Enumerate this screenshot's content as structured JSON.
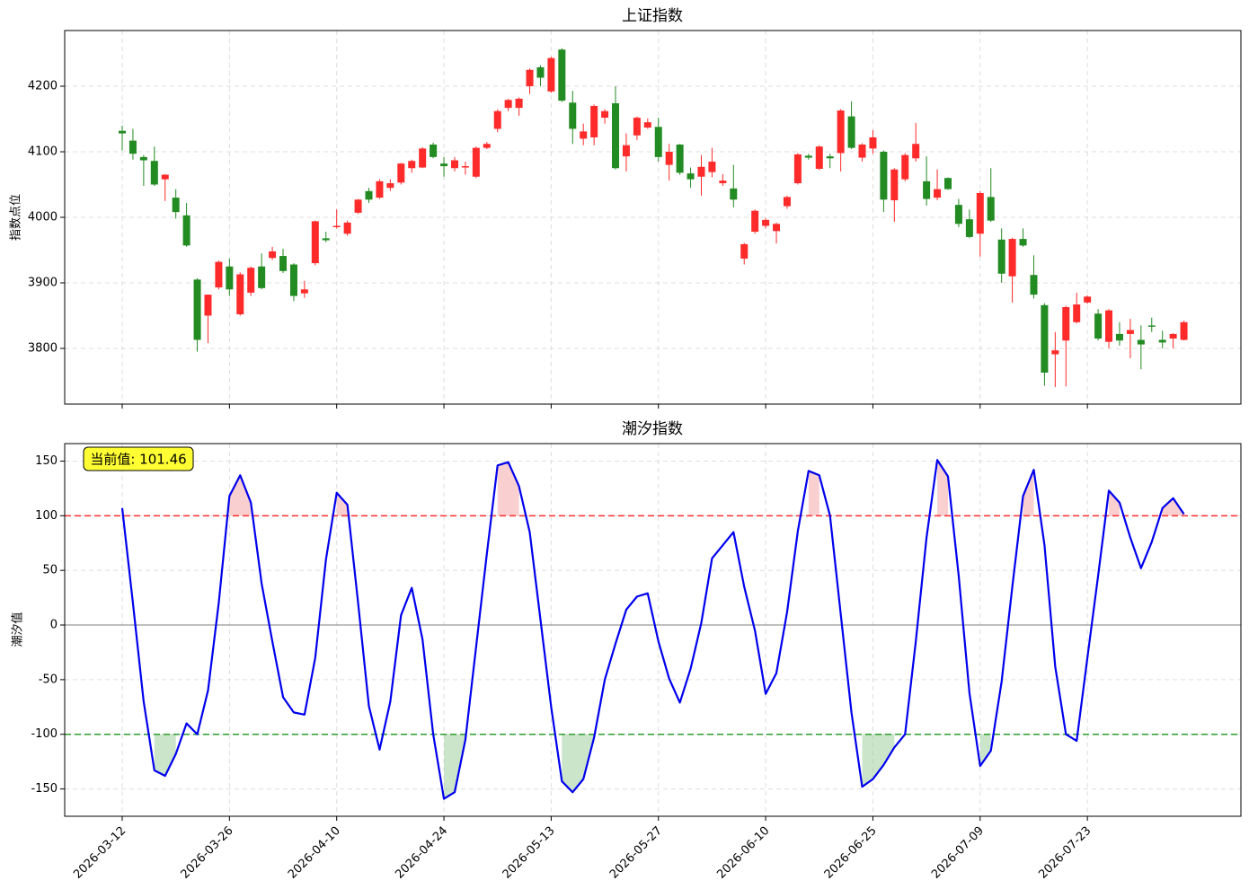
{
  "chart_data": [
    {
      "type": "candlestick",
      "title": "上证指数",
      "ylabel": "指数点位",
      "open": [
        4132,
        4117,
        4092,
        4086,
        4058,
        4030,
        4003,
        3905,
        3850,
        3893,
        3925,
        3852,
        3885,
        3925,
        3938,
        3941,
        3928,
        3884,
        3930,
        3968,
        3985,
        3975,
        4007,
        4040,
        4030,
        4045,
        4053,
        4075,
        4076,
        4111,
        4082,
        4075,
        4076,
        4062,
        4106,
        4135,
        4167,
        4167,
        4200,
        4229,
        4192,
        4256,
        4175,
        4120,
        4122,
        4152,
        4174,
        4093,
        4125,
        4137,
        4138,
        4080,
        4111,
        4067,
        4062,
        4069,
        4052,
        4044,
        3937,
        3978,
        3987,
        3979,
        4017,
        4052,
        4094,
        4074,
        4093,
        4098,
        4154,
        4091,
        4105,
        4100,
        4026,
        4058,
        4090,
        4055,
        4030,
        4060,
        4019,
        3997,
        3975,
        4031,
        3966,
        3910,
        3967,
        3912,
        3866,
        3791,
        3812,
        3840,
        3870,
        3853,
        3810,
        3822,
        3822,
        3813,
        3835,
        3813,
        3815,
        3813
      ],
      "high": [
        4140,
        4135,
        4095,
        4108,
        4066,
        4043,
        4022,
        3907,
        3882,
        3934,
        3937,
        3916,
        3925,
        3945,
        3955,
        3952,
        3930,
        3903,
        3995,
        3978,
        4012,
        3995,
        4028,
        4045,
        4058,
        4058,
        4083,
        4088,
        4107,
        4114,
        4092,
        4092,
        4085,
        4108,
        4115,
        4165,
        4181,
        4183,
        4227,
        4232,
        4245,
        4258,
        4193,
        4143,
        4172,
        4165,
        4200,
        4128,
        4154,
        4151,
        4152,
        4112,
        4112,
        4076,
        4095,
        4106,
        4066,
        4080,
        3961,
        4012,
        3999,
        3992,
        4033,
        4098,
        4097,
        4110,
        4097,
        4165,
        4177,
        4113,
        4133,
        4102,
        4075,
        4098,
        4144,
        4093,
        4073,
        4061,
        4028,
        4012,
        4040,
        4075,
        3983,
        3969,
        3983,
        3942,
        3869,
        3825,
        3865,
        3885,
        3881,
        3860,
        3860,
        3840,
        3845,
        3835,
        3847,
        3827,
        3823,
        3842
      ],
      "low": [
        4102,
        4088,
        4048,
        4048,
        4025,
        3998,
        3955,
        3795,
        3808,
        3890,
        3880,
        3850,
        3880,
        3890,
        3935,
        3915,
        3872,
        3877,
        3927,
        3962,
        3983,
        3972,
        4005,
        4022,
        4028,
        4040,
        4050,
        4068,
        4075,
        4090,
        4062,
        4070,
        4065,
        4060,
        4104,
        4130,
        4162,
        4155,
        4188,
        4200,
        4190,
        4176,
        4112,
        4110,
        4110,
        4143,
        4073,
        4070,
        4118,
        4135,
        4085,
        4056,
        4065,
        4045,
        4033,
        4061,
        4048,
        4015,
        3928,
        3975,
        3983,
        3960,
        4013,
        4050,
        4088,
        4072,
        4075,
        4070,
        4104,
        4085,
        4097,
        4008,
        3993,
        4055,
        4085,
        4018,
        4026,
        4042,
        3985,
        3968,
        3940,
        3993,
        3900,
        3870,
        3955,
        3876,
        3743,
        3741,
        3742,
        3838,
        3868,
        3812,
        3800,
        3804,
        3785,
        3768,
        3825,
        3800,
        3800,
        3812
      ],
      "close": [
        4128,
        4097,
        4087,
        4050,
        4065,
        4008,
        3957,
        3813,
        3882,
        3932,
        3890,
        3913,
        3923,
        3892,
        3948,
        3918,
        3880,
        3890,
        3994,
        3965,
        3987,
        3992,
        4027,
        4027,
        4055,
        4052,
        4082,
        4086,
        4105,
        4092,
        4078,
        4087,
        4078,
        4106,
        4112,
        4162,
        4179,
        4181,
        4225,
        4213,
        4243,
        4178,
        4135,
        4131,
        4170,
        4162,
        4075,
        4110,
        4152,
        4145,
        4092,
        4100,
        4068,
        4058,
        4077,
        4085,
        4056,
        4027,
        3959,
        4010,
        3996,
        3990,
        4031,
        4096,
        4091,
        4108,
        4090,
        4163,
        4106,
        4111,
        4122,
        4027,
        4073,
        4095,
        4112,
        4028,
        4043,
        4043,
        3990,
        3970,
        4037,
        3995,
        3914,
        3967,
        3957,
        3882,
        3763,
        3797,
        3863,
        3867,
        3879,
        3815,
        3858,
        3812,
        3828,
        3806,
        3833,
        3809,
        3822,
        3840
      ],
      "up_color": "#ff2a2a",
      "down_color": "#228b22",
      "ylim": [
        3715,
        4285
      ],
      "yticks": [
        3800,
        3900,
        4000,
        4100,
        4200
      ],
      "grid": true
    },
    {
      "type": "line",
      "title": "潮汐指数",
      "ylabel": "潮汐值",
      "categories": [
        "2026-03-12",
        null,
        null,
        null,
        null,
        null,
        null,
        null,
        null,
        null,
        "2026-03-26",
        null,
        null,
        null,
        null,
        null,
        null,
        null,
        null,
        null,
        "2026-04-10",
        null,
        null,
        null,
        null,
        null,
        null,
        null,
        null,
        null,
        "2026-04-24",
        null,
        null,
        null,
        null,
        null,
        null,
        null,
        null,
        null,
        "2026-05-13",
        null,
        null,
        null,
        null,
        null,
        null,
        null,
        null,
        null,
        "2026-05-27",
        null,
        null,
        null,
        null,
        null,
        null,
        null,
        null,
        null,
        "2026-06-10",
        null,
        null,
        null,
        null,
        null,
        null,
        null,
        null,
        null,
        "2026-06-25",
        null,
        null,
        null,
        null,
        null,
        null,
        null,
        null,
        null,
        "2026-07-09",
        null,
        null,
        null,
        null,
        null,
        null,
        null,
        null,
        null,
        "2026-07-23",
        null,
        null,
        null,
        null,
        null,
        null,
        null,
        null,
        null
      ],
      "series": [
        {
          "color": "#0000ee",
          "values": [
            107,
            20,
            -70,
            -133,
            -138,
            -118,
            -90,
            -100,
            -60,
            20,
            118,
            137,
            112,
            38,
            -15,
            -66,
            -80,
            -82,
            -30,
            60,
            121,
            110,
            20,
            -74,
            -114,
            -70,
            9,
            34,
            -13,
            -100,
            -159,
            -153,
            -105,
            -20,
            65,
            146,
            149,
            127,
            85,
            5,
            -75,
            -143,
            -153,
            -141,
            -103,
            -50,
            -17,
            14,
            26,
            29,
            -15,
            -49,
            -71,
            -40,
            2,
            61,
            73,
            85,
            35,
            -5,
            -63,
            -44,
            12,
            86,
            141,
            137,
            100,
            10,
            -80,
            -148,
            -141,
            -128,
            -112,
            -100,
            -15,
            80,
            151,
            136,
            45,
            -62,
            -129,
            -115,
            -52,
            35,
            118,
            142,
            73,
            -38,
            -100,
            -106,
            -30,
            45,
            123,
            112,
            80,
            52,
            76,
            107,
            116,
            101.46
          ]
        }
      ],
      "thresholds": [
        {
          "value": 100,
          "color": "#ff3030",
          "fill": "#f4a0a0"
        },
        {
          "value": -100,
          "color": "#2e9e2e",
          "fill": "#98cc98"
        }
      ],
      "zero_line": {
        "value": 0,
        "color": "#999999"
      },
      "annotation": "当前值: 101.46",
      "ylim": [
        -175,
        166
      ],
      "yticks": [
        -150,
        -100,
        -50,
        0,
        50,
        100,
        150
      ],
      "grid": true
    }
  ]
}
